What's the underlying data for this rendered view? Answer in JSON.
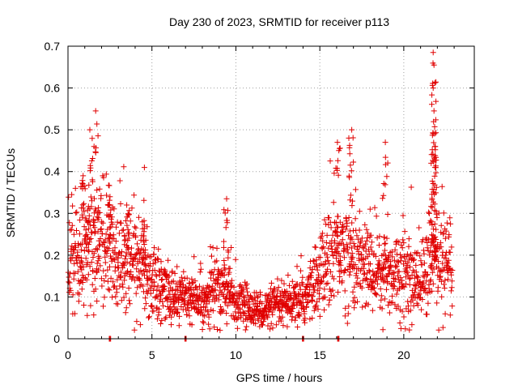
{
  "chart_data": {
    "type": "scatter",
    "title": "Day 230 of 2023, SRMTID for receiver p113",
    "xlabel": "GPS time / hours",
    "ylabel": "SRMTID / TECUs",
    "xlim": [
      0,
      24.2
    ],
    "ylim": [
      0,
      0.7
    ],
    "x_ticks": [
      0,
      5,
      10,
      15,
      20
    ],
    "y_ticks": [
      0,
      0.1,
      0.2,
      0.3,
      0.4,
      0.5,
      0.6,
      0.7
    ],
    "x_tick_labels": [
      "0",
      "5",
      "10",
      "15",
      "20"
    ],
    "y_tick_labels": [
      "0",
      "0.1",
      "0.2",
      "0.3",
      "0.4",
      "0.5",
      "0.6",
      "0.7"
    ],
    "grid": true,
    "marker": "plus",
    "marker_color": "#e00000",
    "series": [
      {
        "name": "SRMTID",
        "baseline_profile": {
          "x": [
            0,
            1,
            2,
            3,
            4,
            5,
            6,
            7,
            8,
            9,
            10,
            11,
            12,
            13,
            14,
            15,
            16,
            17,
            18,
            19,
            20,
            21,
            22,
            23
          ],
          "y": [
            0.19,
            0.21,
            0.24,
            0.2,
            0.18,
            0.14,
            0.11,
            0.1,
            0.09,
            0.13,
            0.09,
            0.07,
            0.07,
            0.08,
            0.09,
            0.15,
            0.22,
            0.19,
            0.17,
            0.16,
            0.16,
            0.14,
            0.2,
            0.16
          ]
        },
        "peak_points": [
          {
            "x": 0.9,
            "y": 0.39
          },
          {
            "x": 1.3,
            "y": 0.5
          },
          {
            "x": 1.65,
            "y": 0.545
          },
          {
            "x": 2.5,
            "y": 0.34
          },
          {
            "x": 3.5,
            "y": 0.32
          },
          {
            "x": 4.55,
            "y": 0.41
          },
          {
            "x": 9.45,
            "y": 0.335
          },
          {
            "x": 16.05,
            "y": 0.47
          },
          {
            "x": 16.9,
            "y": 0.5
          },
          {
            "x": 18.9,
            "y": 0.47
          },
          {
            "x": 21.75,
            "y": 0.685
          },
          {
            "x": 21.8,
            "y": 0.655
          },
          {
            "x": 21.75,
            "y": 0.6
          },
          {
            "x": 21.8,
            "y": 0.545
          },
          {
            "x": 21.85,
            "y": 0.46
          }
        ],
        "zero_points": [
          {
            "x": 2.5,
            "y": 0
          },
          {
            "x": 7.0,
            "y": 0
          },
          {
            "x": 14.0,
            "y": 0
          },
          {
            "x": 16.1,
            "y": 0
          }
        ]
      }
    ]
  }
}
